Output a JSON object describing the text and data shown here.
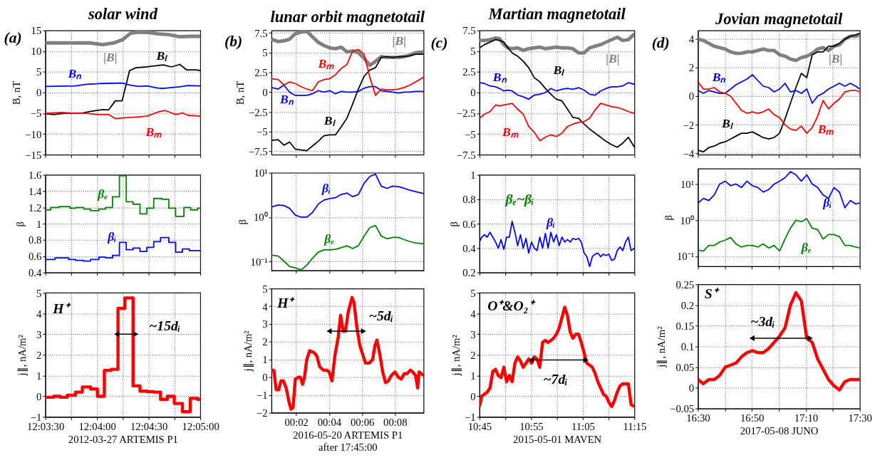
{
  "chart_data": [
    {
      "type": "line",
      "title": "solar wind",
      "ylabel": "B, nT",
      "xlim": [
        723.5,
        725
      ],
      "ylim": [
        -15,
        15
      ],
      "yticks": [
        -15,
        -10,
        -5,
        0,
        5,
        10,
        15
      ],
      "xticks": [
        {
          "value": 723.5,
          "label": null
        },
        {
          "value": 723.75,
          "label": null
        },
        {
          "value": 724,
          "label": null
        },
        {
          "value": 724.25,
          "label": null
        },
        {
          "value": 724.5,
          "label": null
        },
        {
          "value": 724.75,
          "label": null
        },
        {
          "value": 725,
          "label": null
        }
      ],
      "tick_labels": "y",
      "grid": true,
      "annotations": [
        "(a)"
      ],
      "series": [
        {
          "name": "|B|",
          "color": "#808080",
          "x": [
            723.5,
            723.792,
            723.925,
            724.057,
            724.164,
            724.249,
            724.323,
            724.403,
            724.509,
            724.588,
            724.695,
            724.801,
            724.907,
            725.0
          ],
          "values": [
            12,
            12,
            12,
            11.6,
            12,
            12.8,
            14.3,
            14.6,
            14.5,
            14.2,
            14.0,
            13.5,
            13.6,
            13.6
          ]
        },
        {
          "name": "Bₗ",
          "color": "#000000",
          "x": [
            723.5,
            723.58,
            723.686,
            723.845,
            723.951,
            724.057,
            724.111,
            724.177,
            724.243,
            724.315,
            724.376,
            724.482,
            724.641,
            724.721,
            724.801,
            724.867,
            724.96,
            725.0
          ],
          "values": [
            -5.1,
            -5.3,
            -5.0,
            -5.0,
            -4.5,
            -4.1,
            -4.2,
            -2.0,
            -2.0,
            5.3,
            6.0,
            6.2,
            6.7,
            6.2,
            6.8,
            5.5,
            5.5,
            5.3
          ]
        },
        {
          "name": "Bₙ",
          "color": "#0000ff",
          "x": [
            723.5,
            723.792,
            723.898,
            724.057,
            724.243,
            724.323,
            724.403,
            724.482,
            724.588,
            724.641,
            724.801,
            724.88,
            725.0
          ],
          "values": [
            1.5,
            1.6,
            2.0,
            2.2,
            2.3,
            1.8,
            1.5,
            1.6,
            1.1,
            1.0,
            1.4,
            1.7,
            1.6
          ]
        },
        {
          "name": "Bₘ",
          "color": "#ff0000",
          "x": [
            723.5,
            723.659,
            723.792,
            723.898,
            724.004,
            724.111,
            724.182,
            724.27,
            724.376,
            724.482,
            724.588,
            724.655,
            724.721,
            724.761,
            724.827,
            724.88,
            725.0
          ],
          "values": [
            -5.0,
            -4.8,
            -5.0,
            -5.0,
            -5.3,
            -5.3,
            -6.3,
            -6.1,
            -5.9,
            -5.7,
            -4.7,
            -4.3,
            -4.9,
            -5.3,
            -4.9,
            -5.5,
            -5.7
          ]
        }
      ]
    },
    {
      "type": "line",
      "title": "lunar orbit magnetotail",
      "ylabel": "B, nT",
      "xlim": [
        0.5,
        9.74
      ],
      "ylim": [
        -7.9,
        7.8
      ],
      "yticks": [
        -7.5,
        -5,
        -2.5,
        0,
        2.5,
        5,
        7.5
      ],
      "xticks": [
        {
          "value": 2,
          "label": null
        },
        {
          "value": 4,
          "label": null
        },
        {
          "value": 6,
          "label": null
        },
        {
          "value": 8,
          "label": null
        }
      ],
      "tick_labels": "y",
      "grid": true,
      "annotations": [
        "(b)"
      ],
      "x": [
        0.5,
        0.904,
        1.252,
        1.6,
        1.948,
        2.296,
        2.643,
        2.991,
        3.339,
        3.687,
        4.035,
        4.383,
        4.73,
        5.078,
        5.426,
        5.774,
        6.122,
        6.47,
        6.817,
        7.165,
        7.513,
        7.861,
        8.209,
        8.557,
        8.904,
        9.252,
        9.74
      ],
      "series": [
        {
          "name": "|B|",
          "color": "#808080",
          "values": [
            6.7,
            6.4,
            6.5,
            6.7,
            7.4,
            7.6,
            7.7,
            7.0,
            6.3,
            5.9,
            5.6,
            5.5,
            5.7,
            5.1,
            5.2,
            5.0,
            4.3,
            3.4,
            3.9,
            4.5,
            4.4,
            4.4,
            4.4,
            4.5,
            4.7,
            5.0,
            5.1
          ]
        },
        {
          "name": "Bₗ",
          "color": "#000000",
          "values": [
            -6.1,
            -6.0,
            -6.7,
            -6.3,
            -7.2,
            -7.3,
            -7.4,
            -6.8,
            -6.2,
            -5.5,
            -5.4,
            -5.4,
            -4.4,
            -3.3,
            -1.5,
            0.4,
            2.0,
            2.8,
            3.1,
            4.4,
            4.5,
            4.4,
            4.5,
            4.5,
            4.6,
            4.8,
            4.8
          ]
        },
        {
          "name": "Bₙ",
          "color": "#0000ff",
          "values": [
            0.6,
            0.4,
            0.9,
            0.0,
            -0.4,
            -0.4,
            -0.4,
            -0.2,
            0.2,
            0.0,
            0.2,
            -0.2,
            0.1,
            0.0,
            0.0,
            0.1,
            0.5,
            0.7,
            0.7,
            0.2,
            0.1,
            0.0,
            -0.1,
            0.0,
            0.0,
            0.1,
            0.1
          ]
        },
        {
          "name": "Bₘ",
          "color": "#ff0000",
          "values": [
            1.7,
            1.6,
            0.9,
            1.3,
            1.1,
            0.7,
            0.4,
            0.2,
            1.3,
            1.6,
            1.7,
            2.2,
            3.0,
            3.5,
            5.2,
            5.4,
            4.8,
            1.9,
            -0.4,
            0.4,
            0.3,
            0.3,
            0.4,
            0.6,
            0.9,
            1.3,
            1.9
          ]
        }
      ]
    },
    {
      "type": "line",
      "title": "Martian magnetotail",
      "xlim": [
        645,
        675
      ],
      "ylim": [
        -7.5,
        7.5
      ],
      "yticks": [
        -7.5,
        -5,
        -2.5,
        0,
        2.5,
        5,
        7.5
      ],
      "xticks": [
        {
          "value": 645,
          "label": null
        },
        {
          "value": 650,
          "label": null
        },
        {
          "value": 655,
          "label": null
        },
        {
          "value": 660,
          "label": null
        },
        {
          "value": 665,
          "label": null
        },
        {
          "value": 670,
          "label": null
        },
        {
          "value": 675,
          "label": null
        }
      ],
      "tick_labels": "y",
      "grid": true,
      "annotations": [
        "(c)"
      ],
      "x": [
        645,
        645.96,
        647.04,
        648.11,
        648.91,
        649.71,
        650.52,
        651.32,
        652.39,
        653.46,
        654.53,
        655.61,
        656.68,
        657.75,
        658.82,
        659.89,
        660.96,
        662.03,
        663.1,
        664.18,
        665.25,
        666.32,
        667.39,
        668.46,
        669.53,
        670.6,
        671.67,
        672.74,
        673.82,
        675
      ],
      "series": [
        {
          "name": "|B|",
          "color": "#808080",
          "values": [
            6.3,
            6.3,
            6.4,
            6.6,
            6.5,
            5.8,
            5.4,
            5.3,
            5.4,
            5.1,
            5.3,
            5.4,
            5.5,
            5.3,
            5.4,
            5.5,
            5.4,
            5.4,
            5.3,
            4.8,
            4.8,
            5.4,
            5.6,
            5.8,
            6.1,
            6.4,
            6.7,
            6.3,
            6.4,
            7.1
          ]
        },
        {
          "name": "Bₗ",
          "color": "#000000",
          "values": [
            5.4,
            5.8,
            6.1,
            6.4,
            6.3,
            6.1,
            5.4,
            4.8,
            4.4,
            3.8,
            3.0,
            1.8,
            1.3,
            0.5,
            -0.2,
            -0.8,
            -1.0,
            -2.0,
            -3.0,
            -3.1,
            -3.8,
            -4.4,
            -4.9,
            -5.4,
            -5.9,
            -6.3,
            -6.6,
            -6.1,
            -5.4,
            -6.6
          ]
        },
        {
          "name": "Bₙ",
          "color": "#0000ff",
          "values": [
            1.2,
            1.1,
            0.8,
            0.7,
            0.5,
            0.2,
            0.3,
            0.2,
            -0.3,
            -0.5,
            -0.8,
            -0.3,
            -0.2,
            0.0,
            0.5,
            0.2,
            0.4,
            0.5,
            0.4,
            0.6,
            0.3,
            -0.2,
            -0.3,
            0.2,
            0.5,
            0.7,
            0.7,
            0.8,
            1.2,
            1.0
          ]
        },
        {
          "name": "Bₘ",
          "color": "#ff0000",
          "values": [
            -3.1,
            -2.6,
            -2.3,
            -1.5,
            -1.6,
            -1.5,
            -1.4,
            -1.3,
            -2.0,
            -2.6,
            -4.1,
            -4.8,
            -5.8,
            -5.4,
            -5.1,
            -5.3,
            -4.9,
            -4.1,
            -3.8,
            -3.6,
            -3.5,
            -3.1,
            -2.1,
            -1.3,
            -1.5,
            -1.7,
            -1.8,
            -2.0,
            -2.3,
            -2.5
          ]
        }
      ]
    },
    {
      "type": "line",
      "title": "Jovian magnetotail",
      "xlim": [
        990,
        1050
      ],
      "ylim": [
        -4.1,
        4.6
      ],
      "yticks": [
        -4,
        -2,
        0,
        2,
        4
      ],
      "xticks": [
        {
          "value": 990,
          "label": null
        },
        {
          "value": 1000,
          "label": null
        },
        {
          "value": 1010,
          "label": null
        },
        {
          "value": 1020,
          "label": null
        },
        {
          "value": 1030,
          "label": null
        },
        {
          "value": 1040,
          "label": null
        },
        {
          "value": 1050,
          "label": null
        }
      ],
      "tick_labels": "y",
      "grid": true,
      "annotations": [
        "(d)"
      ],
      "x": [
        990,
        992.02,
        994.03,
        996.05,
        998.06,
        1000.08,
        1002.1,
        1004.11,
        1006.13,
        1008.15,
        1010.16,
        1012.18,
        1014.19,
        1016.21,
        1018.23,
        1020.24,
        1022.26,
        1024.27,
        1026.29,
        1028.31,
        1030.32,
        1032.34,
        1034.35,
        1036.37,
        1038.39,
        1040.4,
        1042.42,
        1044.44,
        1046.45,
        1048.47,
        1050
      ],
      "series": [
        {
          "name": "|B|",
          "color": "#808080",
          "values": [
            4.0,
            3.9,
            3.7,
            3.5,
            3.4,
            3.3,
            3.1,
            3.0,
            3.0,
            3.1,
            3.1,
            3.2,
            3.3,
            3.2,
            3.2,
            2.9,
            2.8,
            2.6,
            2.5,
            2.7,
            2.8,
            3.0,
            3.3,
            3.4,
            3.2,
            3.5,
            3.6,
            4.0,
            4.2,
            4.2,
            4.3
          ]
        },
        {
          "name": "Bₗ",
          "color": "#000000",
          "values": [
            -3.8,
            -3.9,
            -3.6,
            -3.5,
            -3.3,
            -3.2,
            -3.0,
            -2.8,
            -2.6,
            -2.6,
            -2.5,
            -2.7,
            -2.9,
            -3.0,
            -2.9,
            -2.6,
            -1.6,
            -0.5,
            0.6,
            1.6,
            1.3,
            2.9,
            3.1,
            3.1,
            3.5,
            3.5,
            3.7,
            4.0,
            4.2,
            4.3,
            4.4
          ]
        },
        {
          "name": "Bₙ",
          "color": "#0000ff",
          "values": [
            0.4,
            0.2,
            0.4,
            0.3,
            0.2,
            0.2,
            0.5,
            0.8,
            1.0,
            1.2,
            1.5,
            1.1,
            0.7,
            0.6,
            0.3,
            0.5,
            0.9,
            0.3,
            0.4,
            0.2,
            0.5,
            -0.5,
            0.0,
            0.2,
            0.5,
            0.7,
            0.9,
            0.7,
            0.9,
            0.7,
            0.5
          ]
        },
        {
          "name": "Bₘ",
          "color": "#ff0000",
          "values": [
            1.0,
            0.5,
            0.5,
            0.6,
            0.3,
            0.2,
            0.0,
            -0.5,
            -1.0,
            -1.2,
            -1.1,
            -1.2,
            -1.1,
            -0.9,
            -1.3,
            -1.5,
            -2.0,
            -2.3,
            -2.4,
            -2.1,
            -2.6,
            -2.2,
            -1.4,
            -0.3,
            -0.9,
            -0.5,
            -0.2,
            0.3,
            0.4,
            0.4,
            0.3
          ]
        }
      ]
    },
    {
      "type": "step",
      "ylabel": "β",
      "xlim": [
        723.5,
        725
      ],
      "ylim": [
        0.4,
        1.6
      ],
      "yticks": [
        0.4,
        0.6,
        0.8,
        1,
        1.2,
        1.4,
        1.6
      ],
      "xticks": [
        {
          "value": 723.5,
          "label": null
        },
        {
          "value": 723.75,
          "label": null
        },
        {
          "value": 724,
          "label": null
        },
        {
          "value": 724.25,
          "label": null
        },
        {
          "value": 724.5,
          "label": null
        },
        {
          "value": 724.75,
          "label": null
        },
        {
          "value": 725,
          "label": null
        }
      ],
      "tick_labels": "y",
      "grid": true,
      "series": [
        {
          "name": "βₑ",
          "color": "#008000",
          "x": [
            723.5,
            723.553,
            723.633,
            723.739,
            723.792,
            723.872,
            723.938,
            724.018,
            724.084,
            724.15,
            724.217,
            724.283,
            724.349,
            724.416,
            724.482,
            724.549,
            724.628,
            724.695,
            724.761,
            724.841,
            724.907,
            724.973,
            725.0
          ],
          "values": [
            1.17,
            1.2,
            1.21,
            1.19,
            1.2,
            1.18,
            1.16,
            1.18,
            1.2,
            1.33,
            1.59,
            1.27,
            1.24,
            1.12,
            1.19,
            1.31,
            1.3,
            1.19,
            1.09,
            1.2,
            1.17,
            1.19,
            1.19
          ]
        },
        {
          "name": "βᵢ",
          "color": "#0000ff",
          "x": [
            723.5,
            723.593,
            723.726,
            723.792,
            723.872,
            723.938,
            724.018,
            724.084,
            724.15,
            724.217,
            724.283,
            724.349,
            724.416,
            724.482,
            724.549,
            724.615,
            724.695,
            724.761,
            724.827,
            724.894,
            725.0
          ],
          "values": [
            0.56,
            0.58,
            0.56,
            0.55,
            0.54,
            0.56,
            0.59,
            0.58,
            0.61,
            0.77,
            0.68,
            0.7,
            0.66,
            0.71,
            0.78,
            0.83,
            0.77,
            0.65,
            0.69,
            0.67,
            0.67
          ]
        }
      ]
    },
    {
      "type": "line",
      "ylabel": "β",
      "log": true,
      "xlim": [
        0.5,
        9.74
      ],
      "ylim": [
        0.063,
        10
      ],
      "yticks": [
        {
          "value": 0.1,
          "label": "10⁻¹"
        },
        {
          "value": 1,
          "label": "10⁰"
        },
        {
          "value": 10,
          "label": "10¹"
        }
      ],
      "xticks": [
        {
          "value": 2,
          "label": null
        },
        {
          "value": 4,
          "label": null
        },
        {
          "value": 6,
          "label": null
        },
        {
          "value": 8,
          "label": null
        }
      ],
      "tick_labels": "y",
      "grid": true,
      "x": [
        0.5,
        0.904,
        1.252,
        1.6,
        1.948,
        2.296,
        2.643,
        2.991,
        3.339,
        3.687,
        4.035,
        4.383,
        4.73,
        5.078,
        5.426,
        5.774,
        6.122,
        6.47,
        6.817,
        7.165,
        7.513,
        7.861,
        8.209,
        8.557,
        8.904,
        9.252,
        9.74
      ],
      "series": [
        {
          "name": "βᵢ",
          "color": "#0000ff",
          "values": [
            1.7,
            1.88,
            1.83,
            1.58,
            1.11,
            1.0,
            1.0,
            1.28,
            1.97,
            2.44,
            2.62,
            2.74,
            3.25,
            3.5,
            2.9,
            3.25,
            5.79,
            8.3,
            9.3,
            5.0,
            4.47,
            5.0,
            4.87,
            4.47,
            4.04,
            3.76,
            3.4
          ]
        },
        {
          "name": "βₑ",
          "color": "#008000",
          "values": [
            0.141,
            0.133,
            0.103,
            0.077,
            0.072,
            0.065,
            0.083,
            0.119,
            0.163,
            0.183,
            0.183,
            0.188,
            0.205,
            0.227,
            0.197,
            0.227,
            0.376,
            0.579,
            0.649,
            0.376,
            0.326,
            0.35,
            0.35,
            0.312,
            0.282,
            0.262,
            0.251
          ]
        }
      ]
    },
    {
      "type": "line",
      "ylabel": "β",
      "xlim": [
        645,
        675
      ],
      "ylim": [
        0.2,
        1
      ],
      "yticks": [
        0.2,
        0.4,
        0.6,
        0.8,
        1
      ],
      "xticks": [
        {
          "value": 645,
          "label": null
        },
        {
          "value": 650,
          "label": null
        },
        {
          "value": 655,
          "label": null
        },
        {
          "value": 660,
          "label": null
        },
        {
          "value": 665,
          "label": null
        },
        {
          "value": 670,
          "label": null
        },
        {
          "value": 675,
          "label": null
        }
      ],
      "tick_labels": "y",
      "grid": true,
      "annotations": [
        "βₑ~βᵢ"
      ],
      "x": [
        645.0,
        645.43,
        645.96,
        646.5,
        647.04,
        647.57,
        648.11,
        648.64,
        649.18,
        649.71,
        650.25,
        650.78,
        651.32,
        651.86,
        652.39,
        652.93,
        653.46,
        654.0,
        654.53,
        655.07,
        655.61,
        656.14,
        656.68,
        657.21,
        657.75,
        658.28,
        658.82,
        659.35,
        659.89,
        660.43,
        660.96,
        661.5,
        662.03,
        662.57,
        663.1,
        663.64,
        664.18,
        664.71,
        665.25,
        665.78,
        666.32,
        666.85,
        667.39,
        667.92,
        668.46,
        669.0,
        669.53,
        670.07,
        670.6,
        671.14,
        671.67,
        672.21,
        672.74,
        673.28,
        673.82,
        674.35,
        675.0
      ],
      "series": [
        {
          "name": "βᵢ",
          "color": "#0000ff",
          "values": [
            0.45,
            0.49,
            0.51,
            0.49,
            0.53,
            0.49,
            0.45,
            0.4,
            0.47,
            0.39,
            0.49,
            0.49,
            0.62,
            0.53,
            0.42,
            0.51,
            0.4,
            0.48,
            0.36,
            0.45,
            0.4,
            0.38,
            0.49,
            0.4,
            0.52,
            0.4,
            0.53,
            0.45,
            0.51,
            0.42,
            0.49,
            0.45,
            0.47,
            0.45,
            0.48,
            0.47,
            0.48,
            0.45,
            0.36,
            0.33,
            0.25,
            0.33,
            0.35,
            0.36,
            0.33,
            0.35,
            0.34,
            0.35,
            0.3,
            0.31,
            0.38,
            0.41,
            0.38,
            0.45,
            0.49,
            0.38,
            0.4
          ]
        }
      ]
    },
    {
      "type": "line",
      "ylabel": "β",
      "log": true,
      "xlim": [
        990,
        1050
      ],
      "ylim": [
        0.053,
        26.7
      ],
      "yticks": [
        {
          "value": 0.1,
          "label": "10⁻¹"
        },
        {
          "value": 1,
          "label": "10⁰"
        },
        {
          "value": 10,
          "label": "10¹"
        }
      ],
      "xticks": [
        {
          "value": 990,
          "label": null
        },
        {
          "value": 1000,
          "label": null
        },
        {
          "value": 1010,
          "label": null
        },
        {
          "value": 1020,
          "label": null
        },
        {
          "value": 1030,
          "label": null
        },
        {
          "value": 1040,
          "label": null
        },
        {
          "value": 1050,
          "label": null
        }
      ],
      "tick_labels": "y",
      "grid": true,
      "x": [
        990,
        992.02,
        994.03,
        996.05,
        998.06,
        1000.08,
        1002.1,
        1004.11,
        1006.13,
        1008.15,
        1010.16,
        1012.18,
        1014.19,
        1016.21,
        1018.23,
        1020.24,
        1022.26,
        1024.27,
        1026.29,
        1028.31,
        1030.32,
        1032.34,
        1034.35,
        1036.37,
        1038.39,
        1040.4,
        1042.42,
        1044.44,
        1046.45,
        1048.47,
        1050
      ],
      "series": [
        {
          "name": "βᵢ",
          "color": "#0000ff",
          "values": [
            3.0,
            4.0,
            3.5,
            5,
            10,
            12,
            9,
            10,
            8,
            12,
            9,
            8,
            6,
            7,
            10,
            12,
            15,
            22,
            18,
            12,
            18,
            10,
            8,
            5,
            4,
            8,
            6,
            2.2,
            3.5,
            2.8,
            3.0
          ]
        },
        {
          "name": "βₑ",
          "color": "#008000",
          "values": [
            0.15,
            0.14,
            0.2,
            0.2,
            0.25,
            0.28,
            0.33,
            0.22,
            0.18,
            0.2,
            0.2,
            0.18,
            0.22,
            0.17,
            0.2,
            0.14,
            0.3,
            0.6,
            1.0,
            0.9,
            1.1,
            0.6,
            0.55,
            0.3,
            0.4,
            0.4,
            0.35,
            0.2,
            0.2,
            0.18,
            0.17
          ]
        }
      ]
    },
    {
      "type": "step",
      "ylabel": "j∥, nA/m²",
      "xlabel": "2012-03-27 ARTEMIS P1",
      "xlim": [
        723.5,
        725
      ],
      "ylim": [
        -1,
        5
      ],
      "yticks": [
        -1,
        0,
        1,
        2,
        3,
        4,
        5
      ],
      "xticks": [
        {
          "value": 723.5,
          "label": "12:03:30"
        },
        {
          "value": 723.75,
          "label": null
        },
        {
          "value": 724,
          "label": "12:04:00"
        },
        {
          "value": 724.25,
          "label": null
        },
        {
          "value": 724.5,
          "label": "12:04:30"
        },
        {
          "value": 724.75,
          "label": null
        },
        {
          "value": 725,
          "label": "12:05:00"
        }
      ],
      "grid": true,
      "annotations": [
        "H⁺",
        "~15dᵢ"
      ],
      "series": [
        {
          "color": "#ff0000",
          "x": [
            723.5,
            723.58,
            723.646,
            723.712,
            723.792,
            723.858,
            723.938,
            724.004,
            724.071,
            724.137,
            724.203,
            724.27,
            724.349,
            724.416,
            724.482,
            724.549,
            724.615,
            724.681,
            724.748,
            724.827,
            724.902,
            724.973,
            725.0
          ],
          "values": [
            -0.05,
            0.0,
            -0.05,
            0.05,
            0.2,
            0.45,
            0.35,
            0.0,
            1.25,
            1.3,
            4.25,
            4.75,
            0.5,
            0.25,
            0.22,
            0.2,
            -0.15,
            0.0,
            -0.35,
            -0.75,
            -0.1,
            -0.15,
            -0.15
          ]
        },
        {
          "type": "line",
          "marker": "triangle",
          "color": "#000000",
          "x": [
            724.19,
            724.376
          ],
          "values": [
            3,
            3
          ]
        }
      ]
    },
    {
      "type": "line",
      "ylabel": "j∥, nA/m²",
      "xlabel": "2016-05-20 ARTEMIS P1\nafter 17:45:00",
      "xlim": [
        0.5,
        9.74
      ],
      "ylim": [
        -2,
        5
      ],
      "yticks": [
        -2,
        -1,
        0,
        1,
        2,
        3,
        4,
        5
      ],
      "xticks": [
        {
          "value": 2,
          "label": "00:02"
        },
        {
          "value": 4,
          "label": "00:04"
        },
        {
          "value": 6,
          "label": "00:06"
        },
        {
          "value": 8,
          "label": "00:08"
        }
      ],
      "grid": true,
      "annotations": [
        "H⁺",
        "~5dᵢ"
      ],
      "series": [
        {
          "color": "#ff0000",
          "x": [
            0.5,
            0.643,
            0.783,
            0.939,
            1.078,
            1.217,
            1.391,
            1.565,
            1.687,
            1.809,
            1.948,
            2.122,
            2.261,
            2.383,
            2.504,
            2.643,
            2.817,
            3.078,
            3.252,
            3.426,
            3.652,
            3.861,
            4.0,
            4.174,
            4.348,
            4.557,
            4.696,
            4.852,
            4.991,
            5.165,
            5.391,
            5.513,
            5.687,
            5.861,
            6.035,
            6.209,
            6.435,
            6.643,
            6.783,
            6.904,
            7.078,
            7.252,
            7.426,
            7.6,
            7.774,
            8.0,
            8.209,
            8.383,
            8.557,
            8.73,
            8.939,
            9.078,
            9.252,
            9.374,
            9.461,
            9.6,
            9.74
          ],
          "values": [
            0.4,
            0.4,
            -0.7,
            -0.7,
            -0.2,
            -0.2,
            -0.6,
            -1.4,
            -1.8,
            -1.7,
            -0.1,
            0.0,
            0.0,
            -0.4,
            0.0,
            1.0,
            1.5,
            1.4,
            1.2,
            0.6,
            0.4,
            0.4,
            0.3,
            -0.2,
            1.2,
            2.3,
            3.5,
            2.6,
            2.6,
            3.7,
            4.5,
            4.2,
            2.8,
            1.8,
            1.3,
            0.8,
            0.8,
            1.0,
            1.8,
            2.1,
            1.3,
            0.3,
            -0.3,
            -0.2,
            0.1,
            0.3,
            0.0,
            -0.1,
            0.2,
            0.2,
            0.4,
            0.3,
            0.1,
            -0.6,
            0.3,
            0.2,
            0.1
          ]
        },
        {
          "type": "line",
          "marker": "triangle",
          "color": "#000000",
          "x": [
            4.0,
            6.09
          ],
          "values": [
            2.6,
            2.6
          ]
        }
      ]
    },
    {
      "type": "line",
      "ylabel": "j∥, nA/m²",
      "xlabel": "2015-05-01 MAVEN",
      "xlim": [
        645,
        675
      ],
      "ylim": [
        -1,
        5
      ],
      "yticks": [
        -1,
        0,
        1,
        2,
        3,
        4,
        5
      ],
      "xticks": [
        {
          "value": 645,
          "label": "10:45"
        },
        {
          "value": 650,
          "label": null
        },
        {
          "value": 655,
          "label": "10:55"
        },
        {
          "value": 660,
          "label": null
        },
        {
          "value": 665,
          "label": "11:05"
        },
        {
          "value": 670,
          "label": null
        },
        {
          "value": 675,
          "label": "11:15"
        }
      ],
      "grid": true,
      "annotations": [
        "O⁺&O₂⁺",
        "~7dᵢ"
      ],
      "series": [
        {
          "color": "#ff0000",
          "x": [
            645.0,
            645.43,
            645.96,
            646.5,
            647.04,
            647.57,
            648.11,
            648.64,
            649.18,
            649.71,
            650.25,
            650.78,
            651.32,
            651.86,
            652.39,
            652.93,
            653.46,
            654.0,
            654.53,
            655.07,
            655.61,
            656.14,
            656.68,
            657.21,
            657.75,
            658.28,
            658.82,
            659.35,
            659.89,
            660.43,
            660.96,
            661.5,
            662.03,
            662.57,
            663.1,
            663.64,
            664.18,
            664.71,
            665.25,
            665.78,
            666.32,
            666.85,
            667.39,
            667.92,
            668.46,
            669.0,
            669.53,
            670.07,
            670.6,
            671.14,
            671.67,
            672.21,
            672.74,
            673.28,
            673.82,
            674.35,
            675.0
          ],
          "values": [
            -0.5,
            0.0,
            0.1,
            0.2,
            0.4,
            1.2,
            1.3,
            1.0,
            0.9,
            1.4,
            0.7,
            1.0,
            0.7,
            1.6,
            1.9,
            1.7,
            1.4,
            1.6,
            1.8,
            1.6,
            1.9,
            1.8,
            1.4,
            2.6,
            2.7,
            2.6,
            2.7,
            2.8,
            3.0,
            3.3,
            3.8,
            4.3,
            3.9,
            3.1,
            2.8,
            3.0,
            3.0,
            2.6,
            2.1,
            1.6,
            1.5,
            1.4,
            1.1,
            0.7,
            0.4,
            0.1,
            0.0,
            -0.3,
            -0.5,
            -0.2,
            0.2,
            0.5,
            0.6,
            0.6,
            0.6,
            -0.4,
            -0.5
          ]
        },
        {
          "type": "line",
          "marker": "triangle",
          "color": "#000000",
          "x": [
            655.0,
            665.6
          ],
          "values": [
            1.75,
            1.75
          ]
        }
      ]
    },
    {
      "type": "line",
      "ylabel": "j∥, nA/m²",
      "xlabel": "2017-05-08 JUNO",
      "xlim": [
        990,
        1050
      ],
      "ylim": [
        -0.05,
        0.25
      ],
      "yticks": [
        -0.05,
        0,
        0.05,
        0.1,
        0.15,
        0.2,
        0.25
      ],
      "xticks": [
        {
          "value": 990,
          "label": "16:30"
        },
        {
          "value": 1000,
          "label": null
        },
        {
          "value": 1010,
          "label": "16:50"
        },
        {
          "value": 1020,
          "label": null
        },
        {
          "value": 1030,
          "label": "17:10"
        },
        {
          "value": 1040,
          "label": null
        },
        {
          "value": 1050,
          "label": "17:30"
        }
      ],
      "grid": true,
      "annotations": [
        "S⁺",
        "~3dᵢ"
      ],
      "series": [
        {
          "color": "#ff0000",
          "x": [
            990,
            992.02,
            994.03,
            996.05,
            998.06,
            1000.08,
            1002.1,
            1004.11,
            1006.13,
            1008.15,
            1010.16,
            1012.18,
            1014.19,
            1016.21,
            1018.23,
            1020.24,
            1022.26,
            1024.27,
            1026.29,
            1028.31,
            1030.32,
            1032.34,
            1034.35,
            1036.37,
            1038.39,
            1040.4,
            1042.42,
            1044.44,
            1046.45,
            1048.47,
            1050
          ],
          "values": [
            0.02,
            0.01,
            0.02,
            0.02,
            0.03,
            0.05,
            0.055,
            0.06,
            0.075,
            0.085,
            0.09,
            0.085,
            0.085,
            0.095,
            0.11,
            0.125,
            0.145,
            0.2,
            0.23,
            0.21,
            0.12,
            0.11,
            0.07,
            0.045,
            0.02,
            0.005,
            -0.005,
            0.015,
            0.02,
            0.02,
            0.02
          ]
        },
        {
          "type": "line",
          "marker": "triangle",
          "color": "#000000",
          "x": [
            1010,
            1031.6
          ],
          "values": [
            0.12,
            0.12
          ]
        }
      ]
    }
  ]
}
